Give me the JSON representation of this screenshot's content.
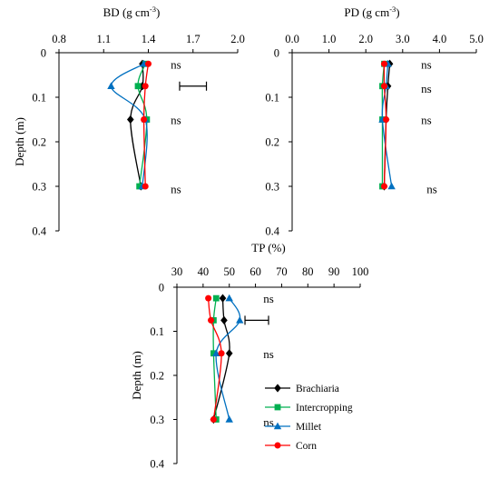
{
  "chart_data": [
    {
      "type": "line",
      "title": "BD (g cm⁻³)",
      "title_main": "BD (g cm",
      "title_sup": "-3",
      "title_end": ")",
      "xlabel": "BD (g cm⁻³)",
      "ylabel": "Depth (m)",
      "xlim": [
        0.8,
        2.0
      ],
      "ylim": [
        0,
        0.4
      ],
      "y_inverted": true,
      "x_axis_position": "top",
      "grid": false,
      "xticks": [
        "0.8",
        "1.1",
        "1.4",
        "1.7",
        "2.0"
      ],
      "yticks": [
        "0",
        "0.1",
        "0.2",
        "0.3",
        "0.4"
      ],
      "depths": [
        0.025,
        0.075,
        0.15,
        0.3
      ],
      "series": [
        {
          "name": "Brachiaria",
          "values": [
            1.36,
            1.36,
            1.28,
            1.35
          ]
        },
        {
          "name": "Intercropping",
          "values": [
            1.38,
            1.33,
            1.39,
            1.34
          ]
        },
        {
          "name": "Millet",
          "values": [
            1.37,
            1.15,
            1.38,
            1.36
          ]
        },
        {
          "name": "Corn",
          "values": [
            1.4,
            1.38,
            1.37,
            1.38
          ]
        }
      ],
      "error_bar": {
        "x1": 1.61,
        "x2": 1.79,
        "depth": 0.075
      },
      "annotations": [
        {
          "text": "ns",
          "x": 1.55,
          "depth": 0.025
        },
        {
          "text": "ns",
          "x": 1.55,
          "depth": 0.15
        },
        {
          "text": "ns",
          "x": 1.55,
          "depth": 0.305
        }
      ]
    },
    {
      "type": "line",
      "title": "PD (g cm⁻³)",
      "title_main": "PD (g cm",
      "title_sup": "-3",
      "title_end": ")",
      "xlabel": "PD (g cm⁻³)",
      "ylabel": "",
      "xlim": [
        0,
        5.0
      ],
      "ylim": [
        0,
        0.4
      ],
      "y_inverted": true,
      "x_axis_position": "top",
      "grid": false,
      "xticks": [
        "0.0",
        "1.0",
        "2.0",
        "3.0",
        "4.0",
        "5.0"
      ],
      "yticks": [
        "0",
        "0.1",
        "0.2",
        "0.3",
        "0.4"
      ],
      "depths": [
        0.025,
        0.075,
        0.15,
        0.3
      ],
      "series": [
        {
          "name": "Brachiaria",
          "values": [
            2.65,
            2.6,
            2.55,
            2.5
          ]
        },
        {
          "name": "Intercropping",
          "values": [
            2.5,
            2.45,
            2.45,
            2.45
          ]
        },
        {
          "name": "Millet",
          "values": [
            2.6,
            2.55,
            2.45,
            2.7
          ]
        },
        {
          "name": "Corn",
          "values": [
            2.5,
            2.5,
            2.55,
            2.5
          ]
        }
      ],
      "annotations": [
        {
          "text": "ns",
          "x": 3.5,
          "depth": 0.025
        },
        {
          "text": "ns",
          "x": 3.5,
          "depth": 0.08
        },
        {
          "text": "ns",
          "x": 3.5,
          "depth": 0.15
        },
        {
          "text": "ns",
          "x": 3.65,
          "depth": 0.305
        }
      ]
    },
    {
      "type": "line",
      "title": "TP (%)",
      "title_main": "TP (%)",
      "title_sup": "",
      "title_end": "",
      "xlabel": "TP (%)",
      "ylabel": "Depth (m)",
      "xlim": [
        30,
        100
      ],
      "ylim": [
        0,
        0.4
      ],
      "y_inverted": true,
      "x_axis_position": "top",
      "grid": false,
      "xticks": [
        "30",
        "40",
        "50",
        "60",
        "70",
        "80",
        "90",
        "100"
      ],
      "yticks": [
        "0",
        "0.1",
        "0.2",
        "0.3",
        "0.4"
      ],
      "depths": [
        0.025,
        0.075,
        0.15,
        0.3
      ],
      "series": [
        {
          "name": "Brachiaria",
          "values": [
            47.5,
            48,
            50,
            44
          ]
        },
        {
          "name": "Intercropping",
          "values": [
            45,
            44,
            44,
            45
          ]
        },
        {
          "name": "Millet",
          "values": [
            50,
            54,
            45,
            50
          ]
        },
        {
          "name": "Corn",
          "values": [
            42,
            43,
            47,
            44
          ]
        }
      ],
      "error_bar": {
        "x1": 56,
        "x2": 65,
        "depth": 0.075
      },
      "annotations": [
        {
          "text": "ns",
          "x": 63,
          "depth": 0.025
        },
        {
          "text": "ns",
          "x": 63,
          "depth": 0.15
        },
        {
          "text": "ns",
          "x": 63,
          "depth": 0.305
        }
      ]
    }
  ],
  "legend": {
    "placement": "bottom-right",
    "entries": [
      {
        "name": "Brachiaria",
        "color": "#000000",
        "marker": "diamond"
      },
      {
        "name": "Intercropping",
        "color": "#00b050",
        "marker": "square"
      },
      {
        "name": "Millet",
        "color": "#0070c0",
        "marker": "triangle"
      },
      {
        "name": "Corn",
        "color": "#ff0000",
        "marker": "circle"
      }
    ]
  },
  "series_style": {
    "Brachiaria": {
      "color": "#000000",
      "marker": "diamond"
    },
    "Intercropping": {
      "color": "#00b050",
      "marker": "square"
    },
    "Millet": {
      "color": "#0070c0",
      "marker": "triangle"
    },
    "Corn": {
      "color": "#ff0000",
      "marker": "circle"
    }
  }
}
